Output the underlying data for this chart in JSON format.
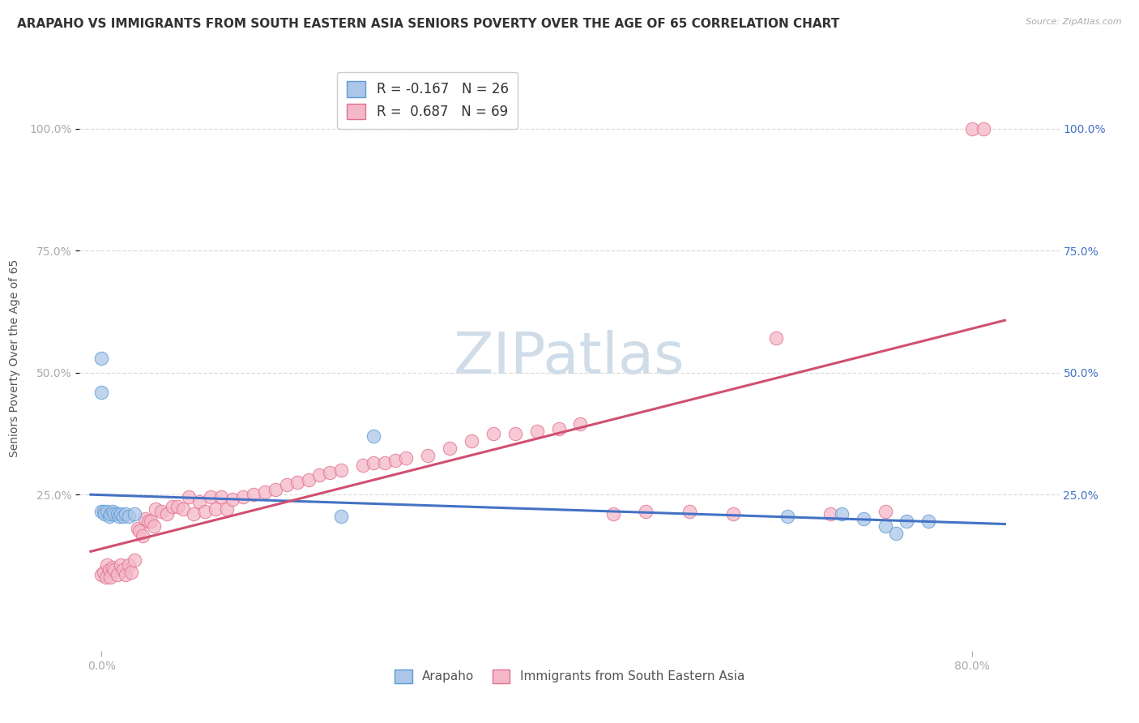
{
  "title": "ARAPAHO VS IMMIGRANTS FROM SOUTH EASTERN ASIA SENIORS POVERTY OVER THE AGE OF 65 CORRELATION CHART",
  "source": "Source: ZipAtlas.com",
  "ylabel": "Seniors Poverty Over the Age of 65",
  "ytick_labels": [
    "25.0%",
    "50.0%",
    "75.0%",
    "100.0%"
  ],
  "ytick_values": [
    0.25,
    0.5,
    0.75,
    1.0
  ],
  "xtick_positions": [
    0.0,
    0.8
  ],
  "xtick_labels": [
    "0.0%",
    "80.0%"
  ],
  "xlim": [
    -0.02,
    0.88
  ],
  "ylim": [
    -0.07,
    1.13
  ],
  "arapaho_R": -0.167,
  "arapaho_N": 26,
  "sea_R": 0.687,
  "sea_N": 69,
  "arapaho_color": "#adc6e8",
  "arapaho_edge_color": "#5b9bd5",
  "arapaho_line_color": "#4472c4",
  "sea_color": "#f4b8c8",
  "sea_edge_color": "#e07090",
  "sea_line_color": "#d05070",
  "legend_label_1": "Arapaho",
  "legend_label_2": "Immigrants from South Eastern Asia",
  "arapaho_x": [
    0.0,
    0.0,
    0.0,
    0.002,
    0.003,
    0.005,
    0.007,
    0.008,
    0.01,
    0.012,
    0.015,
    0.016,
    0.018,
    0.02,
    0.022,
    0.025,
    0.03,
    0.22,
    0.25,
    0.63,
    0.68,
    0.7,
    0.72,
    0.73,
    0.74,
    0.76
  ],
  "arapaho_y": [
    0.53,
    0.46,
    0.215,
    0.215,
    0.21,
    0.215,
    0.205,
    0.21,
    0.215,
    0.21,
    0.21,
    0.205,
    0.21,
    0.205,
    0.21,
    0.205,
    0.21,
    0.205,
    0.37,
    0.205,
    0.21,
    0.2,
    0.185,
    0.17,
    0.195,
    0.195
  ],
  "sea_x": [
    0.0,
    0.002,
    0.004,
    0.005,
    0.007,
    0.008,
    0.01,
    0.012,
    0.015,
    0.018,
    0.02,
    0.022,
    0.025,
    0.027,
    0.03,
    0.033,
    0.035,
    0.038,
    0.04,
    0.043,
    0.045,
    0.048,
    0.05,
    0.055,
    0.06,
    0.065,
    0.07,
    0.075,
    0.08,
    0.085,
    0.09,
    0.095,
    0.1,
    0.105,
    0.11,
    0.115,
    0.12,
    0.13,
    0.14,
    0.15,
    0.16,
    0.17,
    0.18,
    0.19,
    0.2,
    0.21,
    0.22,
    0.24,
    0.25,
    0.26,
    0.27,
    0.28,
    0.3,
    0.32,
    0.34,
    0.36,
    0.38,
    0.4,
    0.42,
    0.44,
    0.47,
    0.5,
    0.54,
    0.58,
    0.62,
    0.67,
    0.72,
    0.8,
    0.81
  ],
  "sea_y": [
    0.085,
    0.09,
    0.08,
    0.105,
    0.095,
    0.08,
    0.1,
    0.095,
    0.085,
    0.105,
    0.095,
    0.085,
    0.105,
    0.09,
    0.115,
    0.18,
    0.175,
    0.165,
    0.2,
    0.195,
    0.195,
    0.185,
    0.22,
    0.215,
    0.21,
    0.225,
    0.225,
    0.22,
    0.245,
    0.21,
    0.235,
    0.215,
    0.245,
    0.22,
    0.245,
    0.22,
    0.24,
    0.245,
    0.25,
    0.255,
    0.26,
    0.27,
    0.275,
    0.28,
    0.29,
    0.295,
    0.3,
    0.31,
    0.315,
    0.315,
    0.32,
    0.325,
    0.33,
    0.345,
    0.36,
    0.375,
    0.375,
    0.38,
    0.385,
    0.395,
    0.21,
    0.215,
    0.215,
    0.21,
    0.57,
    0.21,
    0.215,
    1.0,
    1.0
  ],
  "background_color": "#ffffff",
  "grid_color": "#dddddd",
  "title_fontsize": 11,
  "axis_fontsize": 10,
  "tick_fontsize": 10,
  "watermark_text": "ZIPatlas",
  "watermark_color": "#d0dde8",
  "right_tick_color": "#4472c4"
}
